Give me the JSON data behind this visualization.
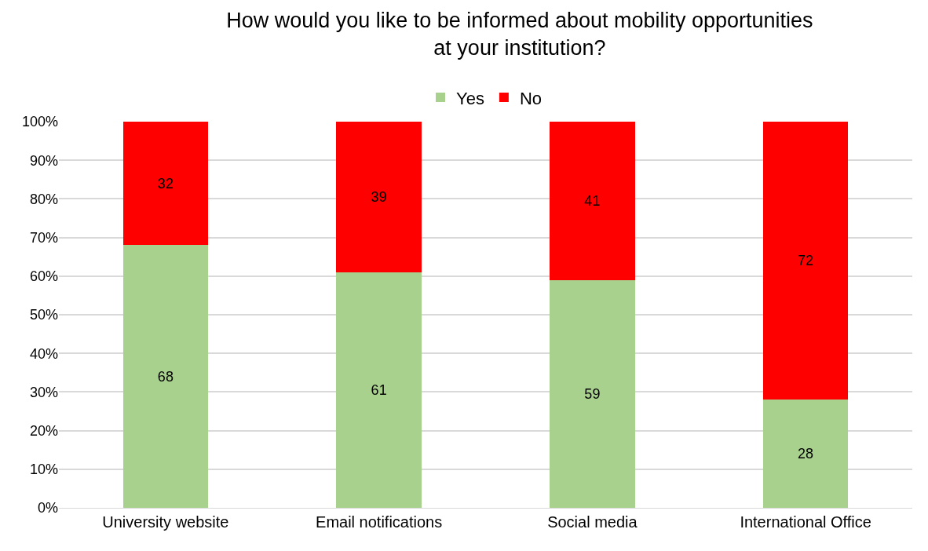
{
  "chart_data": {
    "type": "bar",
    "title": "How would you like to be informed about mobility opportunities at your institution?",
    "categories": [
      "University website",
      "Email notifications",
      "Social media",
      "International Office"
    ],
    "series": [
      {
        "name": "Yes",
        "color": "#a9d18e",
        "values": [
          68,
          61,
          59,
          28
        ]
      },
      {
        "name": "No",
        "color": "#ff0000",
        "values": [
          32,
          39,
          41,
          72
        ]
      }
    ],
    "stacked": true,
    "data_labels": true,
    "grid": "y",
    "legend": "top",
    "ylim": [
      0,
      100
    ],
    "yticks": [
      {
        "value": 0,
        "label": "0%"
      },
      {
        "value": 10,
        "label": "10%"
      },
      {
        "value": 20,
        "label": "20%"
      },
      {
        "value": 30,
        "label": "30%"
      },
      {
        "value": 40,
        "label": "40%"
      },
      {
        "value": 50,
        "label": "50%"
      },
      {
        "value": 60,
        "label": "60%"
      },
      {
        "value": 70,
        "label": "70%"
      },
      {
        "value": 80,
        "label": "80%"
      },
      {
        "value": 90,
        "label": "90%"
      },
      {
        "value": 100,
        "label": "100%"
      }
    ]
  }
}
